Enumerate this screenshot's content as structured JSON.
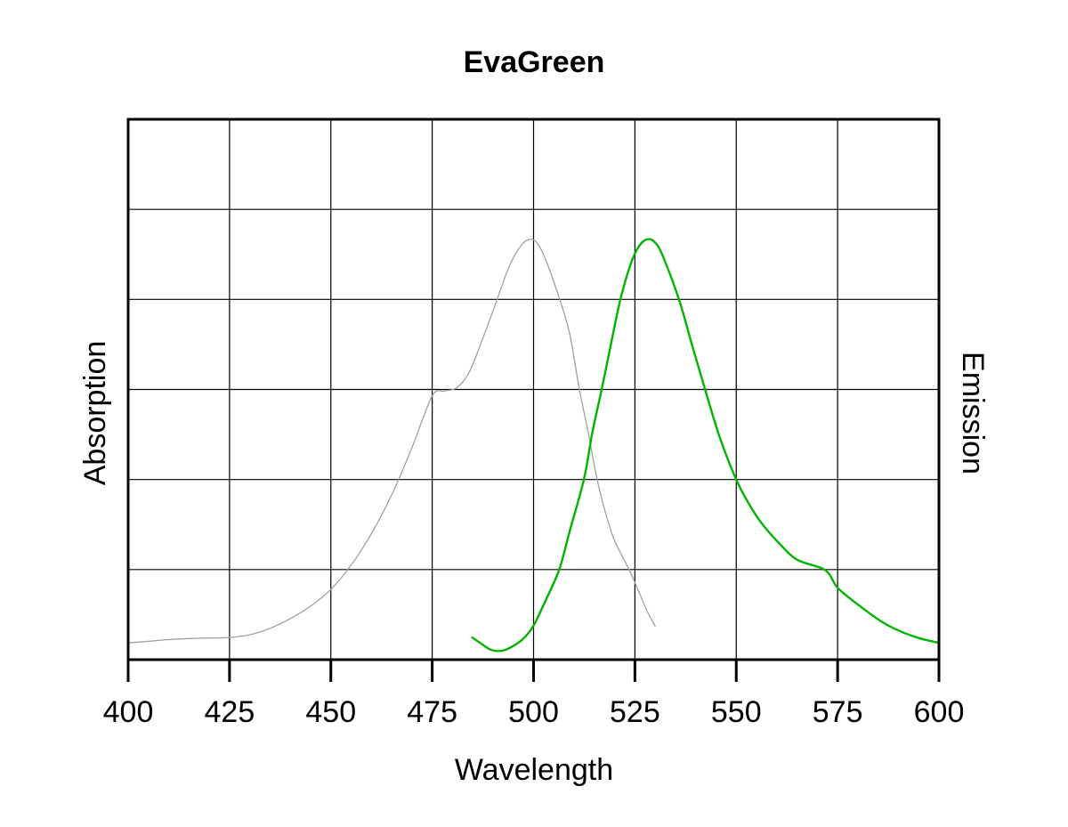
{
  "chart_data": {
    "type": "line",
    "title": "EvaGreen",
    "xlabel": "Wavelength",
    "ylabel": "Absorption",
    "ylabel_right": "Emission",
    "xlim": [
      400,
      600
    ],
    "ylim": [
      0,
      1
    ],
    "xticks": [
      400,
      425,
      450,
      475,
      500,
      525,
      550,
      575,
      600
    ],
    "y_gridlines": 6,
    "grid": true,
    "legend": null,
    "series": [
      {
        "name": "Absorption",
        "color": "#a0a0a0",
        "stroke_width": 1.3,
        "points": [
          [
            400,
            0.031
          ],
          [
            405,
            0.034
          ],
          [
            410,
            0.037
          ],
          [
            415,
            0.039
          ],
          [
            420,
            0.04
          ],
          [
            425,
            0.041
          ],
          [
            430,
            0.046
          ],
          [
            435,
            0.058
          ],
          [
            440,
            0.076
          ],
          [
            445,
            0.099
          ],
          [
            450,
            0.13
          ],
          [
            455,
            0.175
          ],
          [
            460,
            0.233
          ],
          [
            465,
            0.305
          ],
          [
            470,
            0.392
          ],
          [
            475,
            0.488
          ],
          [
            478,
            0.497
          ],
          [
            481,
            0.503
          ],
          [
            484,
            0.53
          ],
          [
            487,
            0.585
          ],
          [
            491,
            0.666
          ],
          [
            494,
            0.728
          ],
          [
            497,
            0.767
          ],
          [
            499.2,
            0.778
          ],
          [
            501,
            0.77
          ],
          [
            503,
            0.74
          ],
          [
            506.5,
            0.666
          ],
          [
            509,
            0.6
          ],
          [
            511.3,
            0.5
          ],
          [
            513.5,
            0.42
          ],
          [
            515.7,
            0.333
          ],
          [
            518,
            0.265
          ],
          [
            520,
            0.22
          ],
          [
            523.6,
            0.166
          ],
          [
            526,
            0.125
          ],
          [
            528,
            0.09
          ],
          [
            530,
            0.062
          ]
        ]
      },
      {
        "name": "Emission",
        "color": "#00b400",
        "stroke_width": 2.4,
        "points": [
          [
            484.9,
            0.041
          ],
          [
            487,
            0.03
          ],
          [
            489,
            0.02
          ],
          [
            490.9,
            0.016
          ],
          [
            493,
            0.018
          ],
          [
            496,
            0.03
          ],
          [
            498,
            0.043
          ],
          [
            500,
            0.063
          ],
          [
            503,
            0.11
          ],
          [
            506.3,
            0.166
          ],
          [
            509,
            0.24
          ],
          [
            512.4,
            0.333
          ],
          [
            514.5,
            0.42
          ],
          [
            516.8,
            0.5
          ],
          [
            519,
            0.58
          ],
          [
            521.4,
            0.666
          ],
          [
            524,
            0.733
          ],
          [
            526,
            0.765
          ],
          [
            528,
            0.778
          ],
          [
            530,
            0.772
          ],
          [
            532,
            0.745
          ],
          [
            535.9,
            0.666
          ],
          [
            539,
            0.585
          ],
          [
            542.3,
            0.5
          ],
          [
            546,
            0.41
          ],
          [
            550,
            0.333
          ],
          [
            553,
            0.29
          ],
          [
            556,
            0.255
          ],
          [
            560,
            0.22
          ],
          [
            565,
            0.185
          ],
          [
            571.9,
            0.166
          ],
          [
            575,
            0.133
          ],
          [
            580,
            0.102
          ],
          [
            585.7,
            0.071
          ],
          [
            590,
            0.054
          ],
          [
            595,
            0.04
          ],
          [
            600,
            0.031
          ]
        ]
      }
    ]
  }
}
